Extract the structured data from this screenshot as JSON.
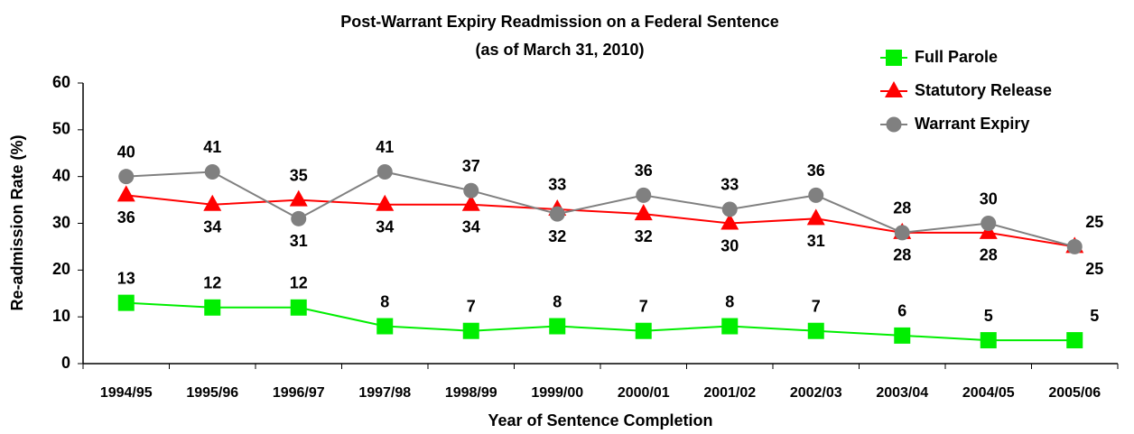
{
  "chart_data": {
    "type": "line",
    "title": "Post-Warrant Expiry Readmission on a Federal Sentence",
    "subtitle": "(as of March 31, 2010)",
    "xlabel": "Year of Sentence Completion",
    "ylabel": "Re-admission Rate (%)",
    "categories": [
      "1994/95",
      "1995/96",
      "1996/97",
      "1997/98",
      "1998/99",
      "1999/00",
      "2000/01",
      "2001/02",
      "2002/03",
      "2003/04",
      "2004/05",
      "2005/06"
    ],
    "series": [
      {
        "name": "Full Parole",
        "color": "#00ee00",
        "marker": "square",
        "values": [
          13,
          12,
          12,
          8,
          7,
          8,
          7,
          8,
          7,
          6,
          5,
          5
        ]
      },
      {
        "name": "Statutory Release",
        "color": "#ff0000",
        "marker": "triangle",
        "values": [
          36,
          34,
          35,
          34,
          34,
          33,
          32,
          30,
          31,
          28,
          28,
          25
        ]
      },
      {
        "name": "Warrant Expiry",
        "color": "#808080",
        "marker": "circle",
        "values": [
          40,
          41,
          31,
          41,
          37,
          32,
          36,
          33,
          36,
          28,
          30,
          25
        ]
      }
    ],
    "ylim": [
      0,
      60
    ],
    "yticks": [
      0,
      10,
      20,
      30,
      40,
      50,
      60
    ],
    "legend": "upper right",
    "grid": false
  }
}
